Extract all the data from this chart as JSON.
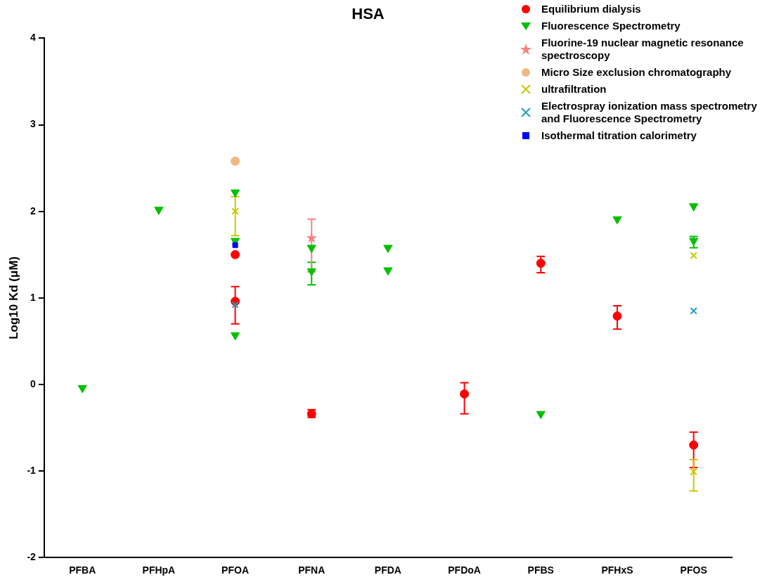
{
  "chart_data": {
    "type": "scatter",
    "title": "HSA",
    "ylabel": "Log10 Kd (μM)",
    "categories": [
      "PFBA",
      "PFHpA",
      "PFOA",
      "PFNA",
      "PFDA",
      "PFDoA",
      "PFBS",
      "PFHxS",
      "PFOS"
    ],
    "ylim": [
      -2,
      4
    ],
    "yticks": [
      -2,
      -1,
      0,
      1,
      2,
      3,
      4
    ],
    "grid": false,
    "legend": "top right",
    "series": [
      {
        "name": "Equilibrium dialysis",
        "color": "#ff0000",
        "marker": "circle",
        "x": [
          "PFOA",
          "PFOA",
          "PFNA",
          "PFDoA",
          "PFBS",
          "PFHxS",
          "PFOS"
        ],
        "values": [
          1.5,
          0.96,
          -0.34,
          -0.11,
          1.4,
          0.79,
          -0.7
        ],
        "errors": [
          null,
          [
            0.7,
            1.13
          ],
          [
            -0.38,
            -0.29
          ],
          [
            -0.34,
            0.02
          ],
          [
            1.29,
            1.48
          ],
          [
            0.64,
            0.91
          ],
          [
            -0.96,
            -0.55
          ]
        ]
      },
      {
        "name": "Fluorescence Spectrometry",
        "color": "#00c000",
        "marker": "triangle",
        "x": [
          "PFBA",
          "PFHpA",
          "PFOA",
          "PFOA",
          "PFOA",
          "PFNA",
          "PFNA",
          "PFDA",
          "PFDA",
          "PFBS",
          "PFHxS",
          "PFOS",
          "PFOS"
        ],
        "values": [
          -0.04,
          2.02,
          2.22,
          1.66,
          0.57,
          1.58,
          1.31,
          1.58,
          1.32,
          -0.34,
          1.91,
          2.06,
          1.66
        ],
        "errors": [
          null,
          null,
          null,
          null,
          null,
          null,
          [
            1.15,
            1.41
          ],
          null,
          null,
          null,
          null,
          null,
          [
            1.58,
            1.71
          ]
        ]
      },
      {
        "name": "Fluorine-19 nuclear magnetic resonance spectroscopy",
        "color": "#f88080",
        "marker": "star",
        "x": [
          "PFNA"
        ],
        "values": [
          1.69
        ],
        "errors": [
          [
            1.3,
            1.91
          ]
        ]
      },
      {
        "name": "Micro Size exclusion chromatography",
        "color": "#f0b880",
        "marker": "circle",
        "x": [
          "PFOA"
        ],
        "values": [
          2.58
        ]
      },
      {
        "name": "ultrafiltration",
        "color": "#c8c800",
        "marker": "cross",
        "x": [
          "PFOA",
          "PFOS",
          "PFOS"
        ],
        "values": [
          2.0,
          1.49,
          -1.01
        ],
        "errors": [
          [
            1.72,
            2.17
          ],
          null,
          [
            -1.23,
            -0.87
          ]
        ]
      },
      {
        "name": "Electrospray ionization mass spectrometry and Fluorescence Spectrometry",
        "color": "#20a0b8",
        "marker": "cross",
        "x": [
          "PFOA",
          "PFOS"
        ],
        "values": [
          0.92,
          0.85
        ]
      },
      {
        "name": "Isothermal titration calorimetry",
        "color": "#0000ff",
        "marker": "square",
        "x": [
          "PFOA"
        ],
        "values": [
          1.61
        ]
      }
    ]
  }
}
